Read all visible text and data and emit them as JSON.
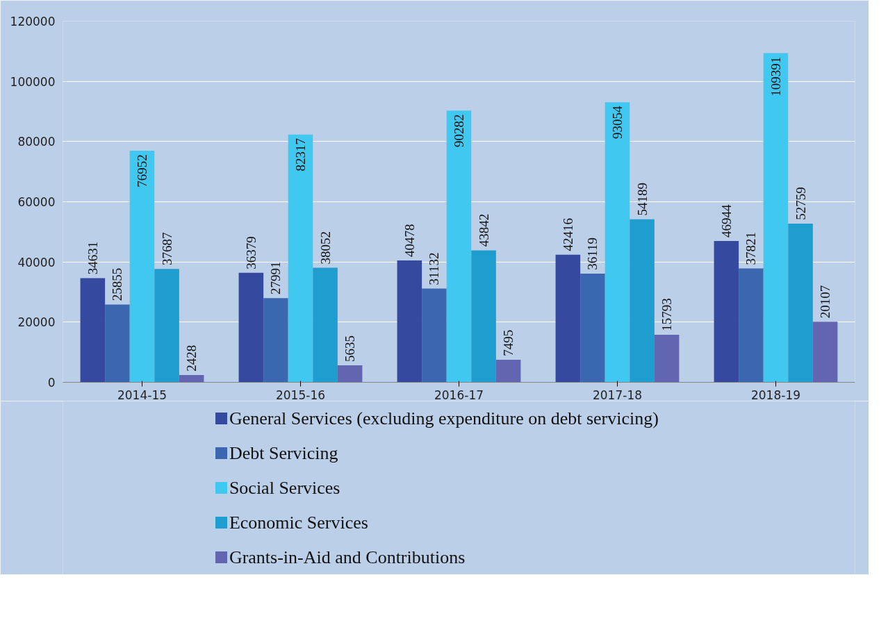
{
  "chart_data": {
    "type": "bar",
    "categories": [
      "2014-15",
      "2015-16",
      "2016-17",
      "2017-18",
      "2018-19"
    ],
    "series": [
      {
        "name": "General Services (excluding expenditure on debt servicing)",
        "color": "#354a9e",
        "values": [
          34631,
          36379,
          40478,
          42416,
          46944
        ]
      },
      {
        "name": "Debt Servicing",
        "color": "#3b67b1",
        "values": [
          25855,
          27991,
          31132,
          36119,
          37821
        ]
      },
      {
        "name": "Social Services",
        "color": "#41c8f0",
        "values": [
          76952,
          82317,
          90282,
          93054,
          109391
        ]
      },
      {
        "name": "Economic Services",
        "color": "#1f9dcf",
        "values": [
          37687,
          38052,
          43842,
          54189,
          52759
        ]
      },
      {
        "name": "Grants-in-Aid and Contributions",
        "color": "#6265b0",
        "values": [
          2428,
          5635,
          7495,
          15793,
          20107
        ]
      }
    ],
    "ylim": [
      0,
      120000
    ],
    "yticks": [
      0,
      20000,
      40000,
      60000,
      80000,
      100000,
      120000
    ],
    "grid": "y",
    "legend": "bottom",
    "data_labels": true
  }
}
